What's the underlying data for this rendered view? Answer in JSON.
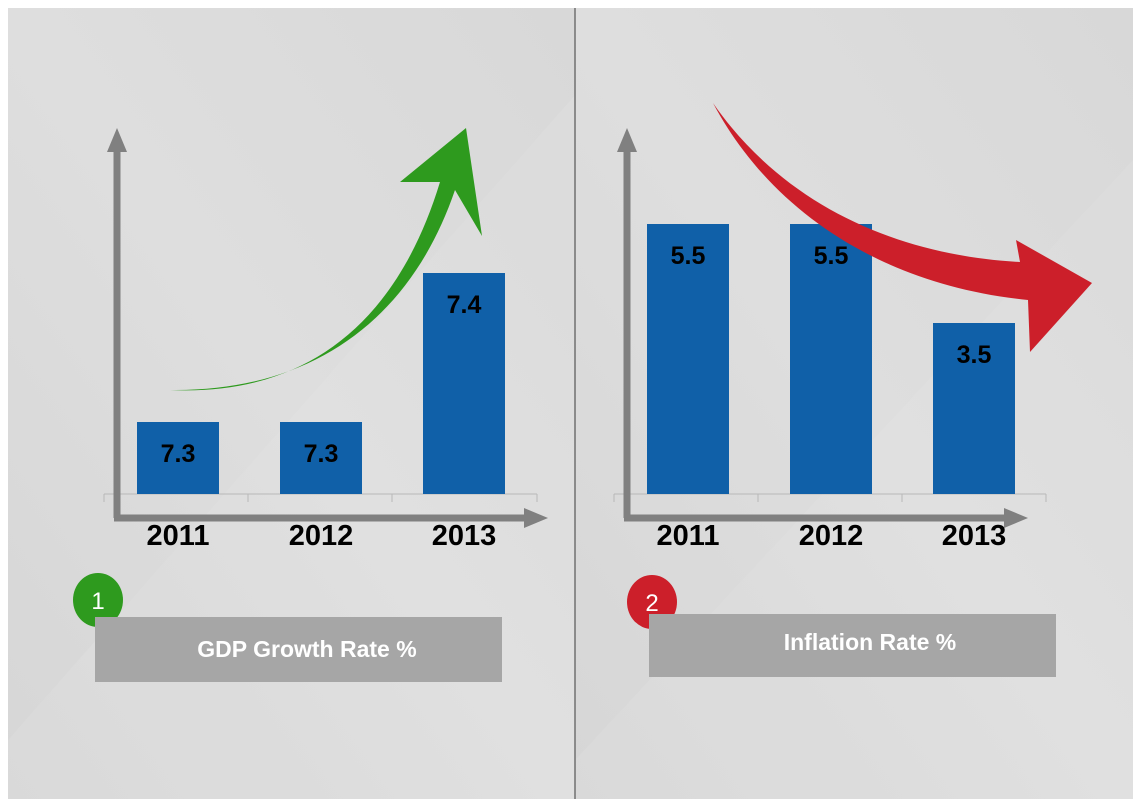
{
  "chart_data": [
    {
      "type": "bar",
      "categories": [
        "2011",
        "2012",
        "2013"
      ],
      "values": [
        7.3,
        7.3,
        7.4
      ],
      "data_labels": [
        "7.3",
        "7.3",
        "7.4"
      ],
      "title": "GDP Growth Rate %",
      "badge": "1",
      "badge_color": "#2e9a1e",
      "bar_color": "#1060a8",
      "arrow_color": "#2e9a1e",
      "arrow_direction": "up"
    },
    {
      "type": "bar",
      "categories": [
        "2011",
        "2012",
        "2013"
      ],
      "values": [
        5.5,
        5.5,
        3.5
      ],
      "data_labels": [
        "5.5",
        "5.5",
        "3.5"
      ],
      "title": "Inflation Rate %",
      "badge": "2",
      "badge_color": "#cc1f2a",
      "bar_color": "#1060a8",
      "arrow_color": "#cc1f2a",
      "arrow_direction": "down"
    }
  ],
  "colors": {
    "panel_bg": "#dcdcdc",
    "caption_bg": "#a6a6a6",
    "axis": "#808080",
    "divider": "#707070"
  }
}
